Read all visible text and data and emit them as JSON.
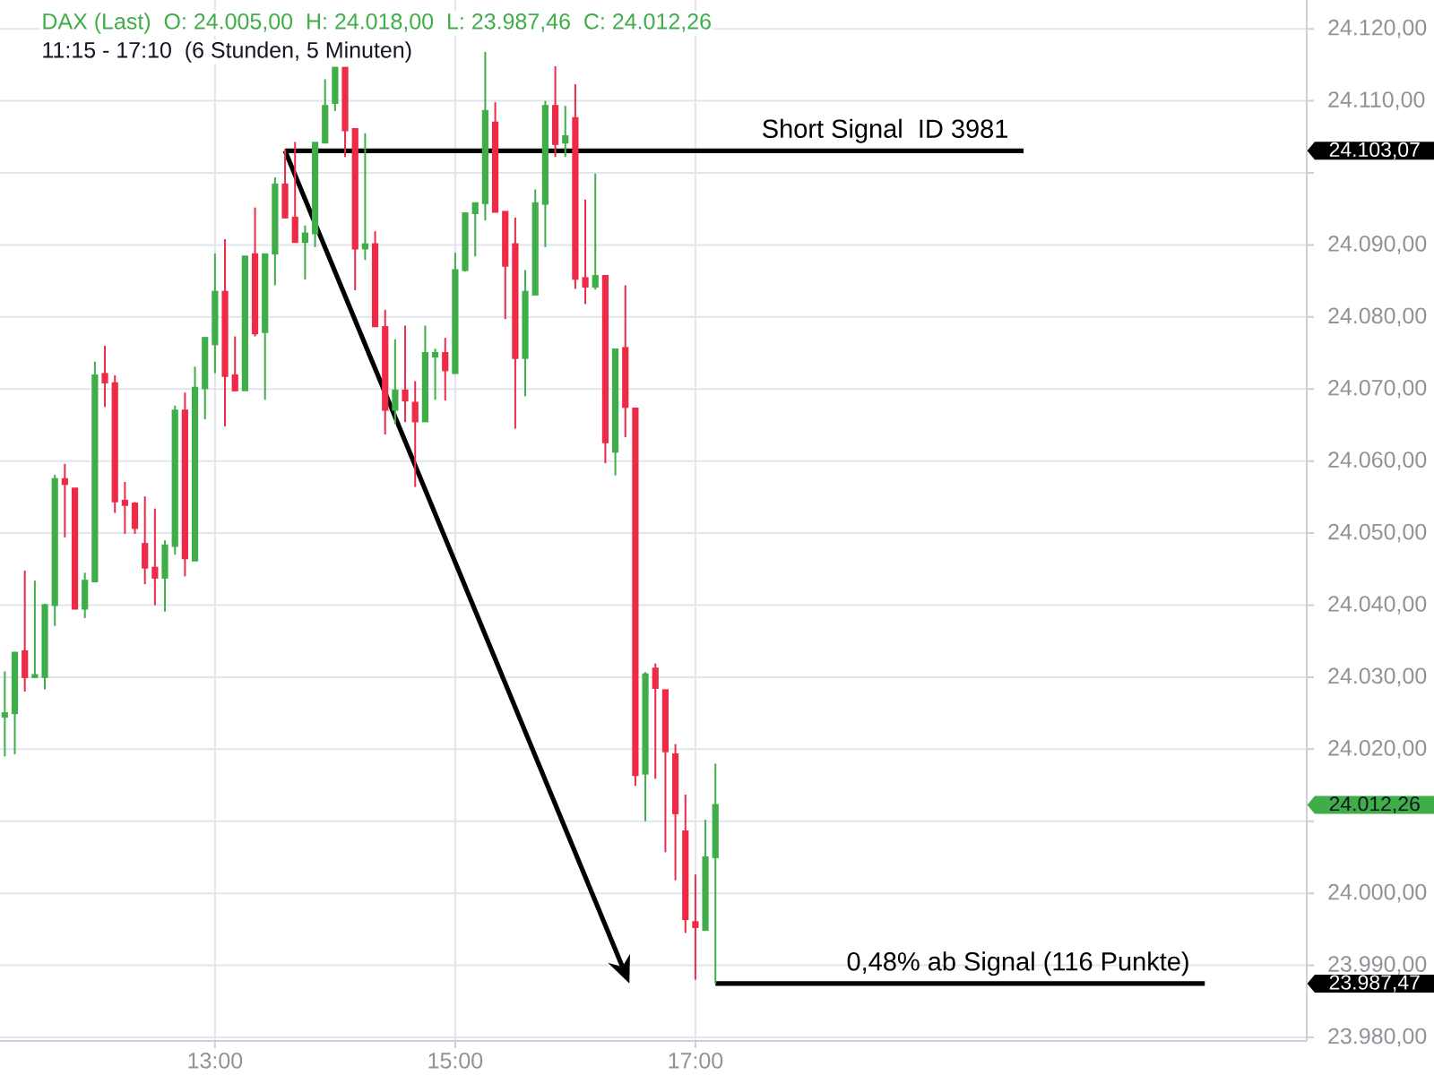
{
  "chart_data": {
    "type": "candlestick",
    "title": "DAX (Last)  O: 24.005,00  H: 24.018,00  L: 23.987,46  C: 24.012,26",
    "subtitle": "11:15 - 17:10  (6 Stunden, 5 Minuten)",
    "x": [
      11.25,
      11.3333,
      11.4167,
      11.5,
      11.5833,
      11.6667,
      11.75,
      11.8333,
      11.9167,
      12,
      12.0833,
      12.1667,
      12.25,
      12.3333,
      12.4167,
      12.5,
      12.5833,
      12.6667,
      12.75,
      12.8333,
      12.9167,
      13,
      13.0833,
      13.1667,
      13.25,
      13.3333,
      13.4167,
      13.5,
      13.5833,
      13.6667,
      13.75,
      13.8333,
      13.9167,
      14,
      14.0833,
      14.1667,
      14.25,
      14.3333,
      14.4167,
      14.5,
      14.5833,
      14.6667,
      14.75,
      14.8333,
      14.9167,
      15,
      15.0833,
      15.1667,
      15.25,
      15.3333,
      15.4167,
      15.5,
      15.5833,
      15.6667,
      15.75,
      15.8333,
      15.9167,
      16,
      16.0833,
      16.1667,
      16.25,
      16.3333,
      16.4167,
      16.5,
      16.5833,
      16.6667,
      16.75,
      16.8333,
      16.9167,
      17,
      17.0833,
      17.1667
    ],
    "ohlc": [
      [
        24024.5,
        24030.8,
        24019.0,
        24025.0
      ],
      [
        24025.0,
        24033.5,
        24019.3,
        24033.4
      ],
      [
        24033.6,
        24044.8,
        24028.0,
        24030.0
      ],
      [
        24030.0,
        24043.4,
        24030.0,
        24030.3
      ],
      [
        24030.0,
        24040.2,
        24028.3,
        24040.0
      ],
      [
        24040.0,
        24058.1,
        24037.1,
        24057.5
      ],
      [
        24057.5,
        24059.6,
        24049.4,
        24056.8
      ],
      [
        24056.2,
        24056.2,
        24039.5,
        24039.5
      ],
      [
        24039.5,
        24044.5,
        24038.2,
        24043.4
      ],
      [
        24043.3,
        24073.8,
        24043.3,
        24071.9
      ],
      [
        24072.1,
        24076.0,
        24067.5,
        24070.9
      ],
      [
        24070.8,
        24071.9,
        24052.8,
        24054.4
      ],
      [
        24054.5,
        24057.1,
        24049.9,
        24053.9
      ],
      [
        24054.1,
        24054.3,
        24049.9,
        24050.7
      ],
      [
        24048.5,
        24055.1,
        24042.9,
        24045.2
      ],
      [
        24045.2,
        24053.4,
        24040.0,
        24043.8
      ],
      [
        24043.8,
        24049.0,
        24039.1,
        24048.3
      ],
      [
        24048.2,
        24067.7,
        24047.0,
        24067.0
      ],
      [
        24067.0,
        24069.5,
        24044.0,
        24046.5
      ],
      [
        24046.2,
        24073.1,
        24046.2,
        24070.2
      ],
      [
        24070.1,
        24077.1,
        24065.8,
        24077.1
      ],
      [
        24076.2,
        24088.8,
        24072.2,
        24083.5
      ],
      [
        24083.5,
        24090.8,
        24064.8,
        24071.8
      ],
      [
        24071.9,
        24077.3,
        24069.8,
        24069.8
      ],
      [
        24069.8,
        24088.4,
        24069.8,
        24088.4
      ],
      [
        24088.7,
        24095.2,
        24077.3,
        24077.7
      ],
      [
        24077.9,
        24088.7,
        24068.5,
        24088.7
      ],
      [
        24088.8,
        24099.4,
        24084.4,
        24098.4
      ],
      [
        24098.4,
        24103.3,
        24093.8,
        24093.8
      ],
      [
        24093.8,
        24104.3,
        24090.4,
        24090.4
      ],
      [
        24090.4,
        24092.7,
        24085.2,
        24091.6
      ],
      [
        24091.6,
        24104.2,
        24089.7,
        24104.2
      ],
      [
        24104.2,
        24113.0,
        24104.2,
        24109.3
      ],
      [
        24109.7,
        24114.6,
        24108.6,
        24114.6
      ],
      [
        24114.6,
        24114.6,
        24102.2,
        24105.9
      ],
      [
        24106.1,
        24106.1,
        24083.7,
        24089.5
      ],
      [
        24089.5,
        24105.5,
        24087.9,
        24090.1
      ],
      [
        24090.1,
        24091.9,
        24078.7,
        24078.7
      ],
      [
        24078.6,
        24081.0,
        24063.7,
        24067.1
      ],
      [
        24067.1,
        24076.9,
        24065.1,
        24069.8
      ],
      [
        24069.8,
        24078.8,
        24065.4,
        24068.4
      ],
      [
        24068.1,
        24071.1,
        24056.4,
        24065.5
      ],
      [
        24065.5,
        24078.8,
        24065.5,
        24075.0
      ],
      [
        24074.5,
        24075.6,
        24068.5,
        24075.0
      ],
      [
        24075.0,
        24077.1,
        24068.4,
        24072.6
      ],
      [
        24072.2,
        24088.9,
        24072.2,
        24086.5
      ],
      [
        24086.5,
        24094.4,
        24086.3,
        24094.4
      ],
      [
        24094.4,
        24095.8,
        24088.4,
        24095.8
      ],
      [
        24095.8,
        24116.8,
        24093.4,
        24108.6
      ],
      [
        24107.0,
        24109.8,
        24094.6,
        24094.6
      ],
      [
        24094.6,
        24094.6,
        24079.7,
        24087.1
      ],
      [
        24090.1,
        24093.8,
        24064.5,
        24074.3
      ],
      [
        24074.3,
        24086.5,
        24069.0,
        24083.5
      ],
      [
        24083.1,
        24097.7,
        24083.1,
        24095.8
      ],
      [
        24095.7,
        24110.0,
        24089.7,
        24109.3
      ],
      [
        24109.3,
        24114.8,
        24102.2,
        24104.0
      ],
      [
        24104.2,
        24109.3,
        24102.2,
        24105.1
      ],
      [
        24107.6,
        24112.3,
        24083.9,
        24085.3
      ],
      [
        24085.4,
        24096.3,
        24081.8,
        24084.2
      ],
      [
        24084.2,
        24099.9,
        24083.8,
        24085.7
      ],
      [
        24085.7,
        24085.7,
        24059.7,
        24062.6
      ],
      [
        24061.3,
        24075.5,
        24058.0,
        24075.5
      ],
      [
        24075.7,
        24084.4,
        24063.3,
        24067.5
      ],
      [
        24067.3,
        24067.3,
        24014.9,
        24016.4
      ],
      [
        24016.6,
        24030.7,
        24010.0,
        24030.4
      ],
      [
        24031.2,
        24031.9,
        24015.9,
        24028.5
      ],
      [
        24028.2,
        24028.2,
        24005.7,
        24019.7
      ],
      [
        24019.3,
        24020.7,
        24001.8,
        24011.1
      ],
      [
        24008.6,
        24013.7,
        23994.5,
        23996.4
      ],
      [
        23996.0,
        24002.6,
        23988.0,
        23995.3
      ],
      [
        23994.9,
        24010.2,
        23994.9,
        24005.0
      ],
      [
        24005.0,
        24018.0,
        23987.46,
        24012.26
      ]
    ],
    "colors": [
      "#3fae49",
      "#3fae49",
      "#ee2a47",
      "#3fae49",
      "#3fae49",
      "#3fae49",
      "#ee2a47",
      "#ee2a47",
      "#3fae49",
      "#3fae49",
      "#ee2a47",
      "#ee2a47",
      "#ee2a47",
      "#ee2a47",
      "#ee2a47",
      "#ee2a47",
      "#3fae49",
      "#3fae49",
      "#ee2a47",
      "#3fae49",
      "#3fae49",
      "#3fae49",
      "#ee2a47",
      "#ee2a47",
      "#3fae49",
      "#ee2a47",
      "#3fae49",
      "#3fae49",
      "#ee2a47",
      "#ee2a47",
      "#3fae49",
      "#3fae49",
      "#3fae49",
      "#3fae49",
      "#ee2a47",
      "#ee2a47",
      "#3fae49",
      "#ee2a47",
      "#ee2a47",
      "#3fae49",
      "#ee2a47",
      "#ee2a47",
      "#3fae49",
      "#3fae49",
      "#ee2a47",
      "#3fae49",
      "#3fae49",
      "#3fae49",
      "#3fae49",
      "#ee2a47",
      "#ee2a47",
      "#ee2a47",
      "#3fae49",
      "#3fae49",
      "#3fae49",
      "#ee2a47",
      "#3fae49",
      "#ee2a47",
      "#ee2a47",
      "#3fae49",
      "#ee2a47",
      "#3fae49",
      "#ee2a47",
      "#ee2a47",
      "#3fae49",
      "#ee2a47",
      "#ee2a47",
      "#ee2a47",
      "#ee2a47",
      "#ee2a47",
      "#3fae49",
      "#3fae49"
    ],
    "xlim": [
      11.21,
      22.09
    ],
    "ylim": [
      23979.5,
      24124
    ],
    "xticks": [
      {
        "value": 13,
        "label": "13:00"
      },
      {
        "value": 15,
        "label": "15:00"
      },
      {
        "value": 17,
        "label": "17:00"
      }
    ],
    "yticks": [
      {
        "value": 23980,
        "label": "23.980,00"
      },
      {
        "value": 23987.47,
        "label": "23.987,47"
      },
      {
        "value": 23990,
        "label": "23.990,00"
      },
      {
        "value": 24000,
        "label": "24.000,00"
      },
      {
        "value": 24010,
        "label": null
      },
      {
        "value": 24012.26,
        "label": "24.012,26"
      },
      {
        "value": 24020,
        "label": "24.020,00"
      },
      {
        "value": 24030,
        "label": "24.030,00"
      },
      {
        "value": 24040,
        "label": "24.040,00"
      },
      {
        "value": 24050,
        "label": "24.050,00"
      },
      {
        "value": 24060,
        "label": "24.060,00"
      },
      {
        "value": 24070,
        "label": "24.070,00"
      },
      {
        "value": 24080,
        "label": "24.080,00"
      },
      {
        "value": 24090,
        "label": "24.090,00"
      },
      {
        "value": 24100,
        "label": null
      },
      {
        "value": 24103.07,
        "label": "24.103,07"
      },
      {
        "value": 24110,
        "label": "24.110,00"
      },
      {
        "value": 24120,
        "label": "24.120,00"
      }
    ],
    "grid": true,
    "annotations": [
      {
        "text": "Short Signal  ID 3981",
        "x": 13.5833,
        "y": 24103.07
      },
      {
        "text": "0,48% ab Signal (116 Punkte)",
        "x": 17.1667,
        "y": 23987.47
      }
    ]
  }
}
